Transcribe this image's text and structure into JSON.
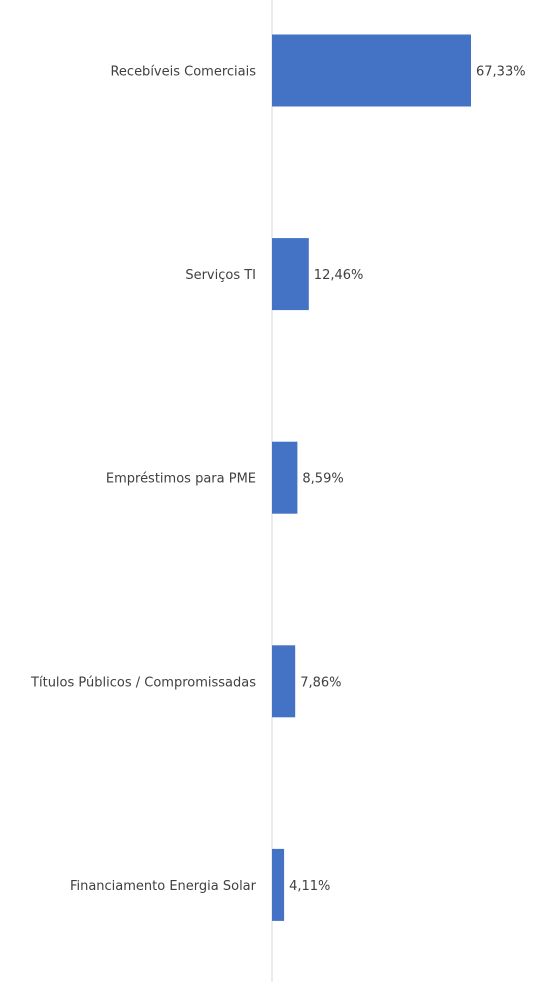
{
  "chart_data": {
    "type": "bar",
    "orientation": "horizontal",
    "categories": [
      "Recebíveis Comerciais",
      "Serviços TI",
      "Empréstimos para PME",
      "Títulos Públicos / Compromissadas",
      "Financiamento Energia Solar"
    ],
    "values": [
      67.33,
      12.46,
      8.59,
      7.86,
      4.11
    ],
    "data_labels": [
      "67,33%",
      "12,46%",
      "8,59%",
      "7,86%",
      "4,11%"
    ],
    "unit": "%",
    "title": "",
    "xlabel": "",
    "ylabel": "",
    "xlim": [
      0,
      100
    ],
    "grid": false,
    "legend": "none",
    "colors": {
      "bar": "#4472C4",
      "axis": "#D9D9D9",
      "text": "#404040"
    }
  }
}
